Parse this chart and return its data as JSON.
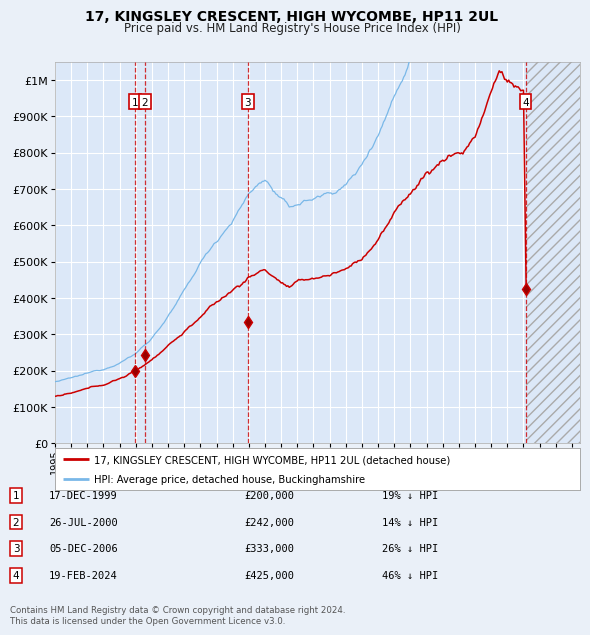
{
  "title": "17, KINGSLEY CRESCENT, HIGH WYCOMBE, HP11 2UL",
  "subtitle": "Price paid vs. HM Land Registry's House Price Index (HPI)",
  "ylim": [
    0,
    1050000
  ],
  "xlim_start": 1995,
  "xlim_end": 2027.5,
  "background_color": "#eaf0f8",
  "plot_bg_color": "#dce8f8",
  "hpi_color": "#7ab8e8",
  "price_color": "#cc0000",
  "hpi_label": "HPI: Average price, detached house, Buckinghamshire",
  "price_label": "17, KINGSLEY CRESCENT, HIGH WYCOMBE, HP11 2UL (detached house)",
  "transactions": [
    {
      "num": 1,
      "date": "17-DEC-1999",
      "year": 1999.96,
      "price": 200000,
      "pct": "19% ↓ HPI"
    },
    {
      "num": 2,
      "date": "26-JUL-2000",
      "year": 2000.57,
      "price": 242000,
      "pct": "14% ↓ HPI"
    },
    {
      "num": 3,
      "date": "05-DEC-2006",
      "year": 2006.93,
      "price": 333000,
      "pct": "26% ↓ HPI"
    },
    {
      "num": 4,
      "date": "19-FEB-2024",
      "year": 2024.13,
      "price": 425000,
      "pct": "46% ↓ HPI"
    }
  ],
  "copyright": "Contains HM Land Registry data © Crown copyright and database right 2024.\nThis data is licensed under the Open Government Licence v3.0.",
  "yticks": [
    0,
    100000,
    200000,
    300000,
    400000,
    500000,
    600000,
    700000,
    800000,
    900000,
    1000000
  ],
  "ytick_labels": [
    "£0",
    "£100K",
    "£200K",
    "£300K",
    "£400K",
    "£500K",
    "£600K",
    "£700K",
    "£800K",
    "£900K",
    "£1M"
  ]
}
